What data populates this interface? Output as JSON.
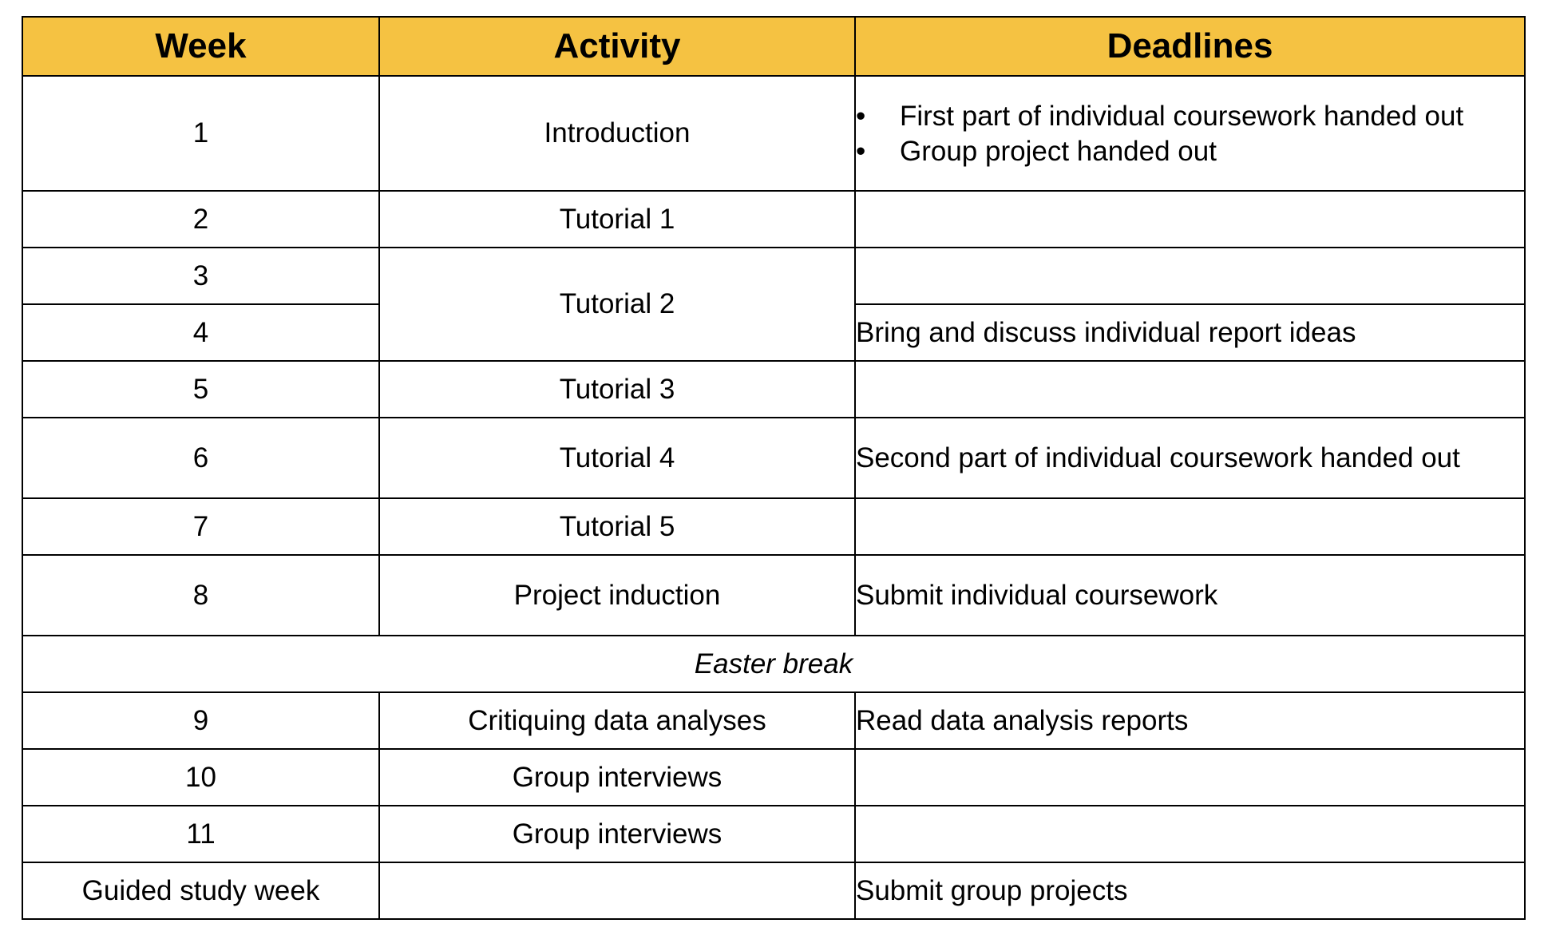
{
  "header": {
    "week": "Week",
    "activity": "Activity",
    "deadlines": "Deadlines"
  },
  "rows": [
    {
      "week": "1",
      "activity": "Introduction",
      "deadlines": [
        "First part of individual coursework handed out",
        "Group project handed out"
      ]
    },
    {
      "week": "2",
      "activity": "Tutorial 1",
      "deadline": ""
    },
    {
      "week": "3",
      "activity": "Tutorial 2",
      "deadline": ""
    },
    {
      "week": "4",
      "deadline": "Bring and discuss individual report ideas"
    },
    {
      "week": "5",
      "activity": "Tutorial 3",
      "deadline": ""
    },
    {
      "week": "6",
      "activity": "Tutorial 4",
      "deadline": "Second part of individual coursework handed out"
    },
    {
      "week": "7",
      "activity": "Tutorial 5",
      "deadline": ""
    },
    {
      "week": "8",
      "activity": "Project induction",
      "deadline": "Submit individual coursework"
    },
    {
      "week": "9",
      "activity": "Critiquing data analyses",
      "deadline": "Read data analysis reports"
    },
    {
      "week": "10",
      "activity": "Group interviews",
      "deadline": ""
    },
    {
      "week": "11",
      "activity": "Group interviews",
      "deadline": ""
    },
    {
      "week": "Guided study week",
      "activity": "",
      "deadline": "Submit group projects"
    }
  ],
  "break_label": "Easter break",
  "bullet_glyph": "•",
  "colors": {
    "header_bg": "#f5c242",
    "border": "#000000"
  }
}
